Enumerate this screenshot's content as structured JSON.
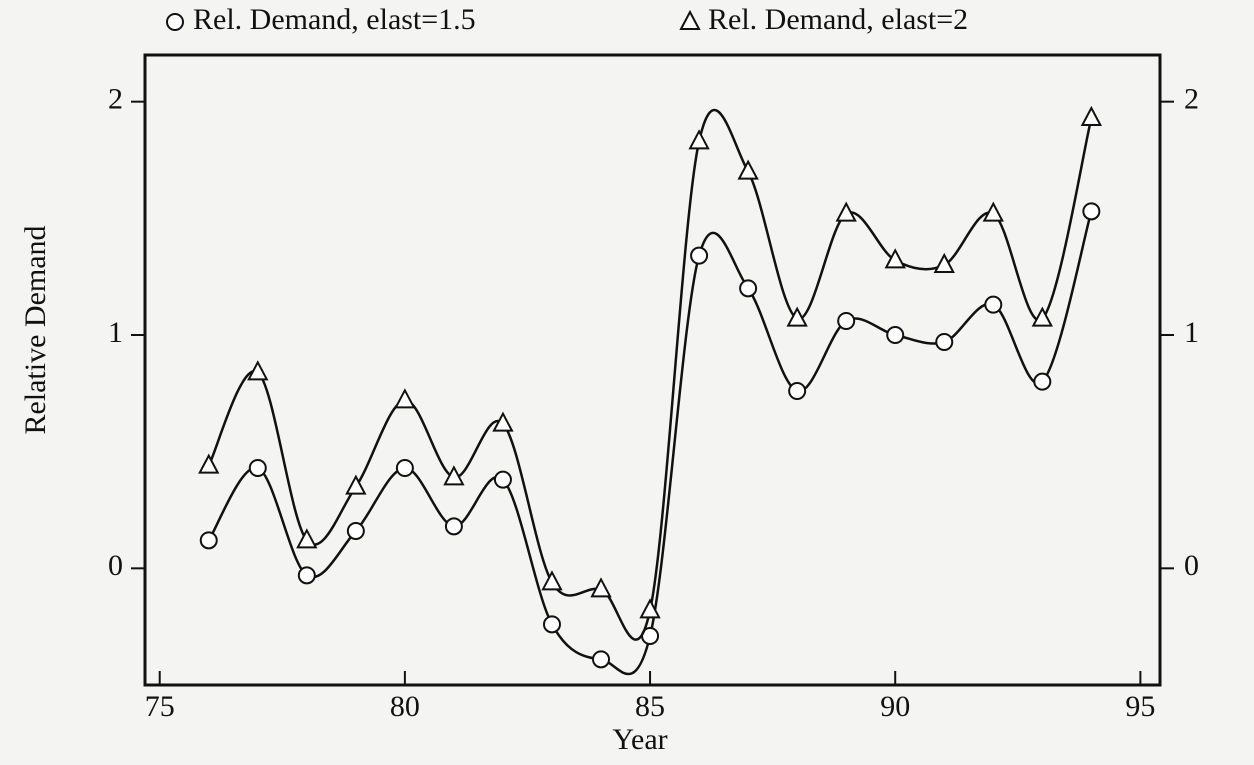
{
  "chart_data": {
    "type": "line",
    "xlabel": "Year",
    "ylabel": "Relative Demand",
    "x": [
      76,
      77,
      78,
      79,
      80,
      81,
      82,
      83,
      84,
      85,
      86,
      87,
      88,
      89,
      90,
      91,
      92,
      93,
      94
    ],
    "series": [
      {
        "name": "Rel. Demand, elast=1.5",
        "marker": "circle",
        "color": "#111111",
        "values": [
          0.12,
          0.43,
          -0.03,
          0.16,
          0.43,
          0.18,
          0.38,
          -0.24,
          -0.39,
          -0.29,
          1.34,
          1.2,
          0.76,
          1.06,
          1.0,
          0.97,
          1.13,
          0.8,
          1.53
        ]
      },
      {
        "name": "Rel. Demand, elast=2",
        "marker": "triangle",
        "color": "#111111",
        "values": [
          0.44,
          0.84,
          0.12,
          0.35,
          0.72,
          0.39,
          0.62,
          -0.06,
          -0.09,
          -0.18,
          1.83,
          1.7,
          1.07,
          1.52,
          1.32,
          1.3,
          1.52,
          1.07,
          1.93
        ]
      }
    ],
    "xlim": [
      74.7,
      95.4
    ],
    "xticks": [
      75,
      80,
      85,
      90,
      95
    ],
    "ylim": [
      -0.5,
      2.2
    ],
    "yticks": [
      0,
      1,
      2
    ],
    "y2lim": [
      -0.5,
      2.2
    ],
    "y2ticks": [
      0,
      1,
      2
    ],
    "legend": "top",
    "grid": false
  }
}
